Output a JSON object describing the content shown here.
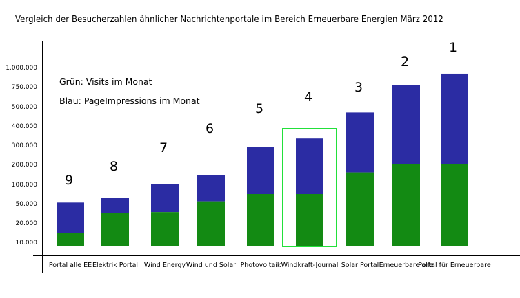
{
  "title": "Vergleich der Besucherzahlen ähnlicher Nachrichtenportale im Bereich Erneuerbare Energien März 2012",
  "legend": {
    "green": "Grün: Visits im Monat",
    "blue": "Blau: PageImpressions im Monat"
  },
  "colors": {
    "green": "#138a13",
    "blue": "#2b2ca3",
    "highlight": "#22e03a",
    "axis": "#000000"
  },
  "chart_data": {
    "type": "bar",
    "stacked": true,
    "scale": "non-linear (tick labels unevenly spaced)",
    "y_ticks": [
      "10.000",
      "20.000",
      "50.000",
      "100.000",
      "200.000",
      "300.000",
      "400.000",
      "500.000",
      "750.000",
      "1.000.000"
    ],
    "categories": [
      "Portal alle EE",
      "Elektrik Portal",
      "Wind Energy",
      "Wind und Solar",
      "Photovoltaik",
      "Windkraft-Journal",
      "Solar Portal",
      "Erneuerbare alle",
      "Portal für Erneuerbare"
    ],
    "ranks": [
      "9",
      "8",
      "7",
      "6",
      "5",
      "4",
      "3",
      "2",
      "1"
    ],
    "highlighted_category": "Windkraft-Journal",
    "series": [
      {
        "name": "Visits im Monat",
        "color": "green",
        "values": [
          15000,
          36000,
          37000,
          56000,
          75000,
          75000,
          160000,
          200000,
          200000
        ]
      },
      {
        "name": "PageImpressions im Monat",
        "color": "blue",
        "values": [
          53000,
          66000,
          100000,
          145000,
          290000,
          335000,
          470000,
          770000,
          920000
        ]
      }
    ]
  }
}
